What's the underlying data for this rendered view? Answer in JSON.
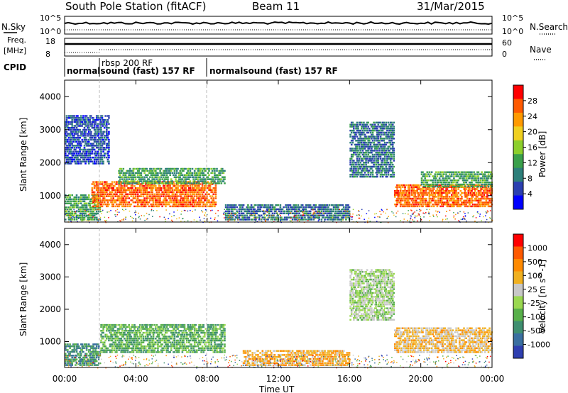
{
  "header": {
    "station": "South Pole Station (fitACF)",
    "beam": "Beam 11",
    "date": "31/Mar/2015"
  },
  "top_panels": {
    "nsky_label": "N.Sky",
    "nsky_ticks": [
      "10^5",
      "10^0"
    ],
    "nsearch_label": "N.Search",
    "nsearch_ticks": [
      "10^5",
      "10^0"
    ],
    "freq_label_1": "Freq.",
    "freq_label_2": "[MHz]",
    "freq_ticks": [
      "18",
      "8"
    ],
    "nave_label": "Nave",
    "nave_ticks": [
      "60",
      "0"
    ],
    "cpid_label": "CPID",
    "cpid_segments": [
      {
        "start_h": 0.0,
        "end_h": 2.0,
        "text": "normalsound (fast) 157 RF"
      },
      {
        "start_h": 2.0,
        "end_h": 8.0,
        "text": "rbsp 200 RF"
      },
      {
        "start_h": 8.0,
        "end_h": 24.0,
        "text": "normalsound (fast) 157 RF"
      }
    ],
    "cpid_overlap_text": "normalsound (fast) 157 RF"
  },
  "axes": {
    "ylabel": "Slant Range [km]",
    "xlabel": "Time UT",
    "yticks": [
      "1000",
      "2000",
      "3000",
      "4000"
    ],
    "xticks": [
      "00:00",
      "04:00",
      "08:00",
      "12:00",
      "16:00",
      "20:00",
      "00:00"
    ]
  },
  "power_colorbar": {
    "label": "Power [dB]",
    "ticks": [
      "28",
      "24",
      "20",
      "16",
      "12",
      "8",
      "4"
    ],
    "colors": [
      "#0000ff",
      "#2b3fb0",
      "#2d7f7a",
      "#3aa04b",
      "#8ccf2c",
      "#f0d020",
      "#ff9a00",
      "#ff5a00",
      "#ff0000"
    ]
  },
  "velocity_colorbar": {
    "label": "Velocity [m s^-1]",
    "ticks": [
      "1000",
      "500",
      "100",
      "25",
      "-25",
      "-100",
      "-500",
      "-1000"
    ],
    "colors": [
      "#2f3fb0",
      "#3a6fa0",
      "#3f8f70",
      "#58b04a",
      "#9ad850",
      "#c8c8c8",
      "#f0b020",
      "#ff8a00",
      "#ff5a00",
      "#ff0000"
    ]
  },
  "chart_data": [
    {
      "type": "heatmap",
      "title": "Power",
      "x_range_hours": [
        0,
        24
      ],
      "y_range_km": [
        200,
        4500
      ],
      "description_values": [
        {
          "t_start": 0.0,
          "t_end": 2.0,
          "r_min": 300,
          "r_max": 1100,
          "power_db": 12
        },
        {
          "t_start": 1.5,
          "t_end": 8.5,
          "r_min": 700,
          "r_max": 1500,
          "power_db": 26
        },
        {
          "t_start": 3.0,
          "t_end": 9.0,
          "r_min": 1400,
          "r_max": 1900,
          "power_db": 12
        },
        {
          "t_start": 0.0,
          "t_end": 2.5,
          "r_min": 2000,
          "r_max": 3500,
          "power_db": 6
        },
        {
          "t_start": 9.0,
          "t_end": 16.0,
          "r_min": 300,
          "r_max": 800,
          "power_db": 8
        },
        {
          "t_start": 16.0,
          "t_end": 18.5,
          "r_min": 1600,
          "r_max": 3300,
          "power_db": 8
        },
        {
          "t_start": 18.5,
          "t_end": 24.0,
          "r_min": 700,
          "r_max": 1400,
          "power_db": 26
        },
        {
          "t_start": 20.0,
          "t_end": 24.0,
          "r_min": 1300,
          "r_max": 1800,
          "power_db": 12
        }
      ]
    },
    {
      "type": "heatmap",
      "title": "Velocity",
      "x_range_hours": [
        0,
        24
      ],
      "y_range_km": [
        200,
        4500
      ],
      "description_values": [
        {
          "t_start": 0.0,
          "t_end": 2.0,
          "r_min": 300,
          "r_max": 1000,
          "velocity": -300
        },
        {
          "t_start": 2.0,
          "t_end": 9.0,
          "r_min": 700,
          "r_max": 1600,
          "velocity": -200
        },
        {
          "t_start": 10.0,
          "t_end": 16.0,
          "r_min": 300,
          "r_max": 800,
          "velocity": 200
        },
        {
          "t_start": 16.0,
          "t_end": 18.5,
          "r_min": 1700,
          "r_max": 3300,
          "velocity": -30
        },
        {
          "t_start": 18.5,
          "t_end": 24.0,
          "r_min": 700,
          "r_max": 1500,
          "velocity": 150
        }
      ]
    }
  ]
}
